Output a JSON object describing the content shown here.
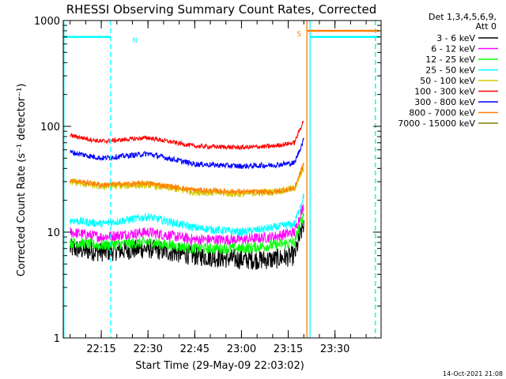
{
  "chart_data": {
    "type": "line",
    "title": "RHESSI Observing Summary Count Rates, Corrected",
    "xlabel": "Start Time (29-May-09 22:03:02)",
    "ylabel": "Corrected Count Rate (s⁻¹ detector⁻¹)",
    "y_scale": "log",
    "ylim": [
      1,
      1000
    ],
    "xlim": [
      "22:03",
      "23:44"
    ],
    "grid": false,
    "legend_position": "right",
    "yticks": [
      {
        "value": 1,
        "label": "1"
      },
      {
        "value": 10,
        "label": "10"
      },
      {
        "value": 100,
        "label": "100"
      },
      {
        "value": 1000,
        "label": "1000"
      }
    ],
    "xticks": [
      "22:15",
      "22:30",
      "22:45",
      "23:00",
      "23:15",
      "23:30"
    ],
    "legend_header": [
      "Det 1,3,4,5,6,9,",
      "Att 0"
    ],
    "series": [
      {
        "name": "3 - 6 keV",
        "color": "#000000",
        "x": [
          "22:05",
          "22:15",
          "22:30",
          "22:45",
          "23:00",
          "23:10",
          "23:17",
          "23:20"
        ],
        "values": [
          7,
          6.5,
          7,
          6,
          5.5,
          5.5,
          6,
          12
        ]
      },
      {
        "name": "6 - 12 keV",
        "color": "#ff00ff",
        "x": [
          "22:05",
          "22:15",
          "22:30",
          "22:45",
          "23:00",
          "23:10",
          "23:17",
          "23:20"
        ],
        "values": [
          10,
          9,
          10,
          8.5,
          8.5,
          9,
          10,
          18
        ]
      },
      {
        "name": "12 - 25 keV",
        "color": "#00ff00",
        "x": [
          "22:05",
          "22:15",
          "22:30",
          "22:45",
          "23:00",
          "23:10",
          "23:17",
          "23:20"
        ],
        "values": [
          8,
          7.5,
          8,
          7,
          7,
          7.5,
          8,
          15
        ]
      },
      {
        "name": "25 - 50 keV",
        "color": "#00ffff",
        "x": [
          "22:05",
          "22:15",
          "22:30",
          "22:45",
          "23:00",
          "23:10",
          "23:17",
          "23:20"
        ],
        "values": [
          13,
          12,
          14,
          11,
          10,
          11,
          12,
          22
        ]
      },
      {
        "name": "50 - 100 keV",
        "color": "#d4c800",
        "x": [
          "22:05",
          "22:15",
          "22:30",
          "22:45",
          "23:00",
          "23:10",
          "23:17",
          "23:20"
        ],
        "values": [
          30,
          27,
          28,
          24,
          23,
          24,
          26,
          40
        ]
      },
      {
        "name": "100 - 300 keV",
        "color": "#ff0000",
        "x": [
          "22:05",
          "22:15",
          "22:30",
          "22:45",
          "23:00",
          "23:10",
          "23:17",
          "23:20"
        ],
        "values": [
          82,
          72,
          78,
          65,
          63,
          65,
          70,
          115
        ]
      },
      {
        "name": "300 - 800 keV",
        "color": "#0000ff",
        "x": [
          "22:05",
          "22:15",
          "22:30",
          "22:45",
          "23:00",
          "23:10",
          "23:17",
          "23:20"
        ],
        "values": [
          57,
          50,
          55,
          44,
          42,
          43,
          45,
          75
        ]
      },
      {
        "name": "800 - 7000 keV",
        "color": "#ff8000",
        "x": [
          "22:05",
          "22:15",
          "22:30",
          "22:45",
          "23:00",
          "23:10",
          "23:17",
          "23:20"
        ],
        "values": [
          31,
          28,
          29,
          25,
          24,
          24,
          26,
          45
        ]
      },
      {
        "name": "7000 - 15000 keV",
        "color": "#808000",
        "x": [],
        "values": []
      }
    ],
    "flags": [
      {
        "label": "N",
        "color": "#00ffff",
        "level": 700,
        "start": "22:03",
        "end": "22:18"
      },
      {
        "label": "",
        "color": "#00ffff",
        "level": 700,
        "start": "23:22",
        "end": "23:44"
      },
      {
        "label": "S",
        "color": "#ff8000",
        "level": 800,
        "start": "23:21",
        "end": "23:44"
      }
    ],
    "markers": [
      {
        "time": "22:03",
        "color": "#00ffff",
        "style": "solid"
      },
      {
        "time": "22:18",
        "color": "#00ffff",
        "style": "dashed"
      },
      {
        "time": "23:21",
        "color": "#ff8000",
        "style": "solid"
      },
      {
        "time": "23:22",
        "color": "#00ffff",
        "style": "solid"
      },
      {
        "time": "23:43",
        "color": "#ff8000",
        "style": "dashed"
      },
      {
        "time": "23:43",
        "color": "#00ffff",
        "style": "dashed"
      }
    ]
  },
  "footer_timestamp": "14-Oct-2021 21:08"
}
